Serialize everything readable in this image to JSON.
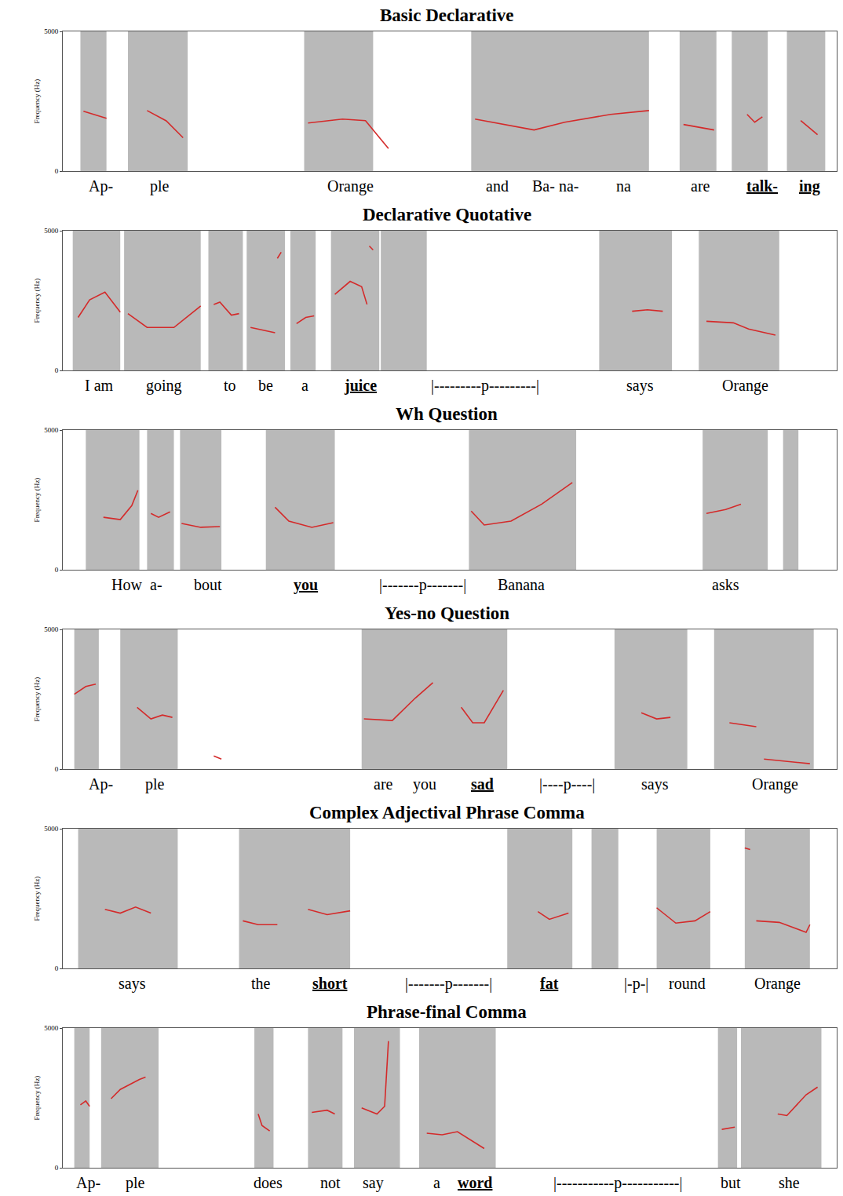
{
  "chart_data": [
    {
      "type": "line",
      "title": "Basic Declarative",
      "y_label": "Frequency (Hz)",
      "color": "#d42a2a",
      "xlim": [
        0,
        1010
      ],
      "ylim": [
        0,
        5000
      ],
      "yticks": [
        0,
        5000
      ],
      "tick_labels": "y",
      "grid": false,
      "speech": [
        [
          23,
          57
        ],
        [
          85,
          163
        ],
        [
          315,
          405
        ],
        [
          533,
          765
        ],
        [
          805,
          853
        ],
        [
          873,
          920
        ],
        [
          945,
          995
        ]
      ],
      "contours": [
        {
          "x": [
            27,
            57
          ],
          "y": [
            2139,
            1889
          ]
        },
        {
          "x": [
            110,
            135,
            157
          ],
          "y": [
            2167,
            1800,
            1194
          ]
        },
        {
          "x": [
            320,
            365,
            395,
            425
          ],
          "y": [
            1722,
            1861,
            1806,
            806
          ]
        },
        {
          "x": [
            538,
            575,
            615,
            655,
            715,
            765
          ],
          "y": [
            1861,
            1667,
            1472,
            1750,
            2028,
            2167
          ]
        },
        {
          "x": [
            810,
            850
          ],
          "y": [
            1667,
            1472
          ]
        },
        {
          "x": [
            893,
            903,
            913
          ],
          "y": [
            2028,
            1750,
            1944
          ]
        },
        {
          "x": [
            963,
            985
          ],
          "y": [
            1806,
            1306
          ]
        }
      ],
      "words": [
        {
          "text": "Ap-",
          "x": 50,
          "focus": false
        },
        {
          "text": "ple",
          "x": 127,
          "focus": false
        },
        {
          "text": "Orange",
          "x": 375,
          "focus": false
        },
        {
          "text": "and",
          "x": 567,
          "focus": false
        },
        {
          "text": "Ba- na-",
          "x": 643,
          "focus": false
        },
        {
          "text": "na",
          "x": 732,
          "focus": false
        },
        {
          "text": "are",
          "x": 832,
          "focus": false
        },
        {
          "text": "talk-",
          "x": 913,
          "focus": true
        },
        {
          "text": "ing",
          "x": 975,
          "focus": true
        }
      ]
    },
    {
      "type": "line",
      "title": "Declarative Quotative",
      "y_label": "Frequency (Hz)",
      "color": "#d42a2a",
      "xlim": [
        0,
        1010
      ],
      "ylim": [
        0,
        5000
      ],
      "yticks": [
        0,
        5000
      ],
      "tick_labels": "y",
      "grid": false,
      "speech": [
        [
          13,
          75
        ],
        [
          80,
          180
        ],
        [
          190,
          235
        ],
        [
          240,
          290
        ],
        [
          297,
          330
        ],
        [
          350,
          413
        ],
        [
          415,
          475
        ],
        [
          700,
          795
        ],
        [
          830,
          935
        ]
      ],
      "contours": [
        {
          "x": [
            20,
            35,
            55,
            75
          ],
          "y": [
            1896,
            2527,
            2802,
            2088
          ]
        },
        {
          "x": [
            85,
            110,
            145,
            180
          ],
          "y": [
            2033,
            1538,
            1538,
            2308
          ]
        },
        {
          "x": [
            197,
            205,
            220,
            230
          ],
          "y": [
            2363,
            2445,
            1978,
            2033
          ]
        },
        {
          "x": [
            245,
            277
          ],
          "y": [
            1538,
            1346
          ]
        },
        {
          "x": [
            280,
            285
          ],
          "y": [
            4011,
            4231
          ]
        },
        {
          "x": [
            305,
            317,
            328
          ],
          "y": [
            1676,
            1896,
            1951
          ]
        },
        {
          "x": [
            355,
            375,
            390,
            397
          ],
          "y": [
            2720,
            3187,
            2995,
            2363
          ]
        },
        {
          "x": [
            400,
            405
          ],
          "y": [
            4451,
            4313
          ]
        },
        {
          "x": [
            743,
            763,
            783
          ],
          "y": [
            2116,
            2170,
            2116
          ]
        },
        {
          "x": [
            840,
            875,
            895,
            930
          ],
          "y": [
            1758,
            1703,
            1484,
            1264
          ]
        }
      ],
      "words": [
        {
          "text": "I am",
          "x": 48,
          "focus": false
        },
        {
          "text": "going",
          "x": 132,
          "focus": false
        },
        {
          "text": "to",
          "x": 218,
          "focus": false
        },
        {
          "text": "be",
          "x": 265,
          "focus": false
        },
        {
          "text": "a",
          "x": 316,
          "focus": false
        },
        {
          "text": "juice",
          "x": 388,
          "focus": true
        },
        {
          "text": "|---------p---------|",
          "x": 551,
          "focus": false
        },
        {
          "text": "says",
          "x": 753,
          "focus": false
        },
        {
          "text": "Orange",
          "x": 891,
          "focus": false
        }
      ]
    },
    {
      "type": "line",
      "title": "Wh Question",
      "y_label": "Frequency (Hz)",
      "color": "#d42a2a",
      "xlim": [
        0,
        1010
      ],
      "ylim": [
        0,
        5000
      ],
      "yticks": [
        0,
        5000
      ],
      "tick_labels": "y",
      "grid": false,
      "speech": [
        [
          30,
          100
        ],
        [
          110,
          145
        ],
        [
          153,
          207
        ],
        [
          265,
          355
        ],
        [
          530,
          670
        ],
        [
          835,
          920
        ],
        [
          940,
          960
        ]
      ],
      "contours": [
        {
          "x": [
            53,
            75,
            90,
            98
          ],
          "y": [
            1878,
            1796,
            2293,
            2845
          ]
        },
        {
          "x": [
            115,
            125,
            140
          ],
          "y": [
            2017,
            1878,
            2072
          ]
        },
        {
          "x": [
            155,
            180,
            205
          ],
          "y": [
            1657,
            1519,
            1547
          ]
        },
        {
          "x": [
            277,
            295,
            325,
            353
          ],
          "y": [
            2238,
            1740,
            1519,
            1685
          ]
        },
        {
          "x": [
            533,
            550,
            585,
            625,
            665
          ],
          "y": [
            2100,
            1602,
            1740,
            2348,
            3122
          ]
        },
        {
          "x": [
            840,
            865,
            885
          ],
          "y": [
            2017,
            2155,
            2348
          ]
        }
      ],
      "words": [
        {
          "text": "How",
          "x": 83,
          "focus": false
        },
        {
          "text": "a-",
          "x": 122,
          "focus": false
        },
        {
          "text": "bout",
          "x": 190,
          "focus": false
        },
        {
          "text": "you",
          "x": 317,
          "focus": true
        },
        {
          "text": "|-------p-------|",
          "x": 470,
          "focus": false
        },
        {
          "text": "Banana",
          "x": 598,
          "focus": false
        },
        {
          "text": "asks",
          "x": 865,
          "focus": false
        }
      ]
    },
    {
      "type": "line",
      "title": "Yes-no Question",
      "y_label": "Frequency (Hz)",
      "color": "#d42a2a",
      "xlim": [
        0,
        1010
      ],
      "ylim": [
        0,
        5000
      ],
      "yticks": [
        0,
        5000
      ],
      "tick_labels": "y",
      "grid": false,
      "speech": [
        [
          15,
          47
        ],
        [
          75,
          150
        ],
        [
          390,
          580
        ],
        [
          720,
          815
        ],
        [
          850,
          980
        ]
      ],
      "contours": [
        {
          "x": [
            15,
            30,
            43
          ],
          "y": [
            2680,
            2956,
            3039
          ]
        },
        {
          "x": [
            97,
            115,
            130,
            143
          ],
          "y": [
            2210,
            1796,
            1934,
            1851
          ]
        },
        {
          "x": [
            197,
            207
          ],
          "y": [
            470,
            359
          ]
        },
        {
          "x": [
            393,
            430,
            460,
            483
          ],
          "y": [
            1796,
            1740,
            2541,
            3094
          ]
        },
        {
          "x": [
            520,
            535,
            550,
            575
          ],
          "y": [
            2210,
            1657,
            1657,
            2818
          ]
        },
        {
          "x": [
            755,
            775,
            793
          ],
          "y": [
            2017,
            1796,
            1851
          ]
        },
        {
          "x": [
            870,
            905
          ],
          "y": [
            1657,
            1519
          ]
        },
        {
          "x": [
            915,
            975
          ],
          "y": [
            359,
            193
          ]
        }
      ],
      "words": [
        {
          "text": "Ap-",
          "x": 50,
          "focus": false
        },
        {
          "text": "ple",
          "x": 120,
          "focus": false
        },
        {
          "text": "are",
          "x": 418,
          "focus": false
        },
        {
          "text": "you",
          "x": 472,
          "focus": false
        },
        {
          "text": "sad",
          "x": 548,
          "focus": true
        },
        {
          "text": "|----p----|",
          "x": 658,
          "focus": false
        },
        {
          "text": "says",
          "x": 773,
          "focus": false
        },
        {
          "text": "Orange",
          "x": 930,
          "focus": false
        }
      ]
    },
    {
      "type": "line",
      "title": "Complex Adjectival Phrase Comma",
      "y_label": "Frequency (Hz)",
      "color": "#d42a2a",
      "xlim": [
        0,
        1010
      ],
      "ylim": [
        0,
        5000
      ],
      "yticks": [
        0,
        5000
      ],
      "tick_labels": "y",
      "grid": false,
      "speech": [
        [
          20,
          150
        ],
        [
          230,
          375
        ],
        [
          580,
          665
        ],
        [
          690,
          725
        ],
        [
          775,
          845
        ],
        [
          890,
          975
        ]
      ],
      "contours": [
        {
          "x": [
            55,
            75,
            95,
            115
          ],
          "y": [
            2115,
            1978,
            2198,
            1978
          ]
        },
        {
          "x": [
            235,
            255,
            280
          ],
          "y": [
            1703,
            1566,
            1566
          ]
        },
        {
          "x": [
            320,
            345,
            375
          ],
          "y": [
            2115,
            1923,
            2060
          ]
        },
        {
          "x": [
            620,
            635,
            660
          ],
          "y": [
            2033,
            1758,
            1978
          ]
        },
        {
          "x": [
            775,
            800,
            825,
            845
          ],
          "y": [
            2170,
            1621,
            1703,
            2033
          ]
        },
        {
          "x": [
            890,
            897
          ],
          "y": [
            4313,
            4258
          ]
        },
        {
          "x": [
            905,
            935,
            970,
            975
          ],
          "y": [
            1703,
            1648,
            1291,
            1566
          ]
        }
      ],
      "words": [
        {
          "text": "says",
          "x": 91,
          "focus": false
        },
        {
          "text": "the",
          "x": 259,
          "focus": false
        },
        {
          "text": "short",
          "x": 349,
          "focus": true
        },
        {
          "text": "|-------p-------|",
          "x": 503,
          "focus": false
        },
        {
          "text": "fat",
          "x": 635,
          "focus": true
        },
        {
          "text": "|-p-|",
          "x": 748,
          "focus": false
        },
        {
          "text": "round",
          "x": 815,
          "focus": false
        },
        {
          "text": "Orange",
          "x": 933,
          "focus": false
        }
      ]
    },
    {
      "type": "line",
      "title": "Phrase-final Comma",
      "y_label": "Frequency (Hz)",
      "color": "#d42a2a",
      "xlim": [
        0,
        1010
      ],
      "ylim": [
        0,
        5000
      ],
      "yticks": [
        0,
        5000
      ],
      "tick_labels": "y",
      "grid": false,
      "speech": [
        [
          15,
          35
        ],
        [
          50,
          125
        ],
        [
          250,
          275
        ],
        [
          320,
          365
        ],
        [
          380,
          440
        ],
        [
          465,
          565
        ],
        [
          855,
          880
        ],
        [
          885,
          990
        ]
      ],
      "contours": [
        {
          "x": [
            23,
            30,
            35
          ],
          "y": [
            2253,
            2390,
            2198
          ]
        },
        {
          "x": [
            63,
            75,
            100,
            108
          ],
          "y": [
            2473,
            2802,
            3159,
            3242
          ]
        },
        {
          "x": [
            255,
            260,
            270
          ],
          "y": [
            1923,
            1511,
            1319
          ]
        },
        {
          "x": [
            325,
            345,
            355
          ],
          "y": [
            1978,
            2060,
            1923
          ]
        },
        {
          "x": [
            390,
            410,
            420,
            425
          ],
          "y": [
            2143,
            1923,
            2198,
            4533
          ]
        },
        {
          "x": [
            475,
            495,
            515,
            550
          ],
          "y": [
            1236,
            1181,
            1291,
            687
          ]
        },
        {
          "x": [
            860,
            877
          ],
          "y": [
            1374,
            1456
          ]
        },
        {
          "x": [
            933,
            945,
            970,
            985
          ],
          "y": [
            1923,
            1868,
            2610,
            2885
          ]
        }
      ],
      "words": [
        {
          "text": "Ap-",
          "x": 33,
          "focus": false
        },
        {
          "text": "ple",
          "x": 95,
          "focus": false
        },
        {
          "text": "does",
          "x": 268,
          "focus": false
        },
        {
          "text": "not",
          "x": 349,
          "focus": false
        },
        {
          "text": "say",
          "x": 405,
          "focus": false
        },
        {
          "text": "a",
          "x": 488,
          "focus": false
        },
        {
          "text": "word",
          "x": 538,
          "focus": true
        },
        {
          "text": "|-----------p-----------|",
          "x": 725,
          "focus": false
        },
        {
          "text": "but",
          "x": 872,
          "focus": false
        },
        {
          "text": "she",
          "x": 948,
          "focus": false
        }
      ]
    }
  ]
}
